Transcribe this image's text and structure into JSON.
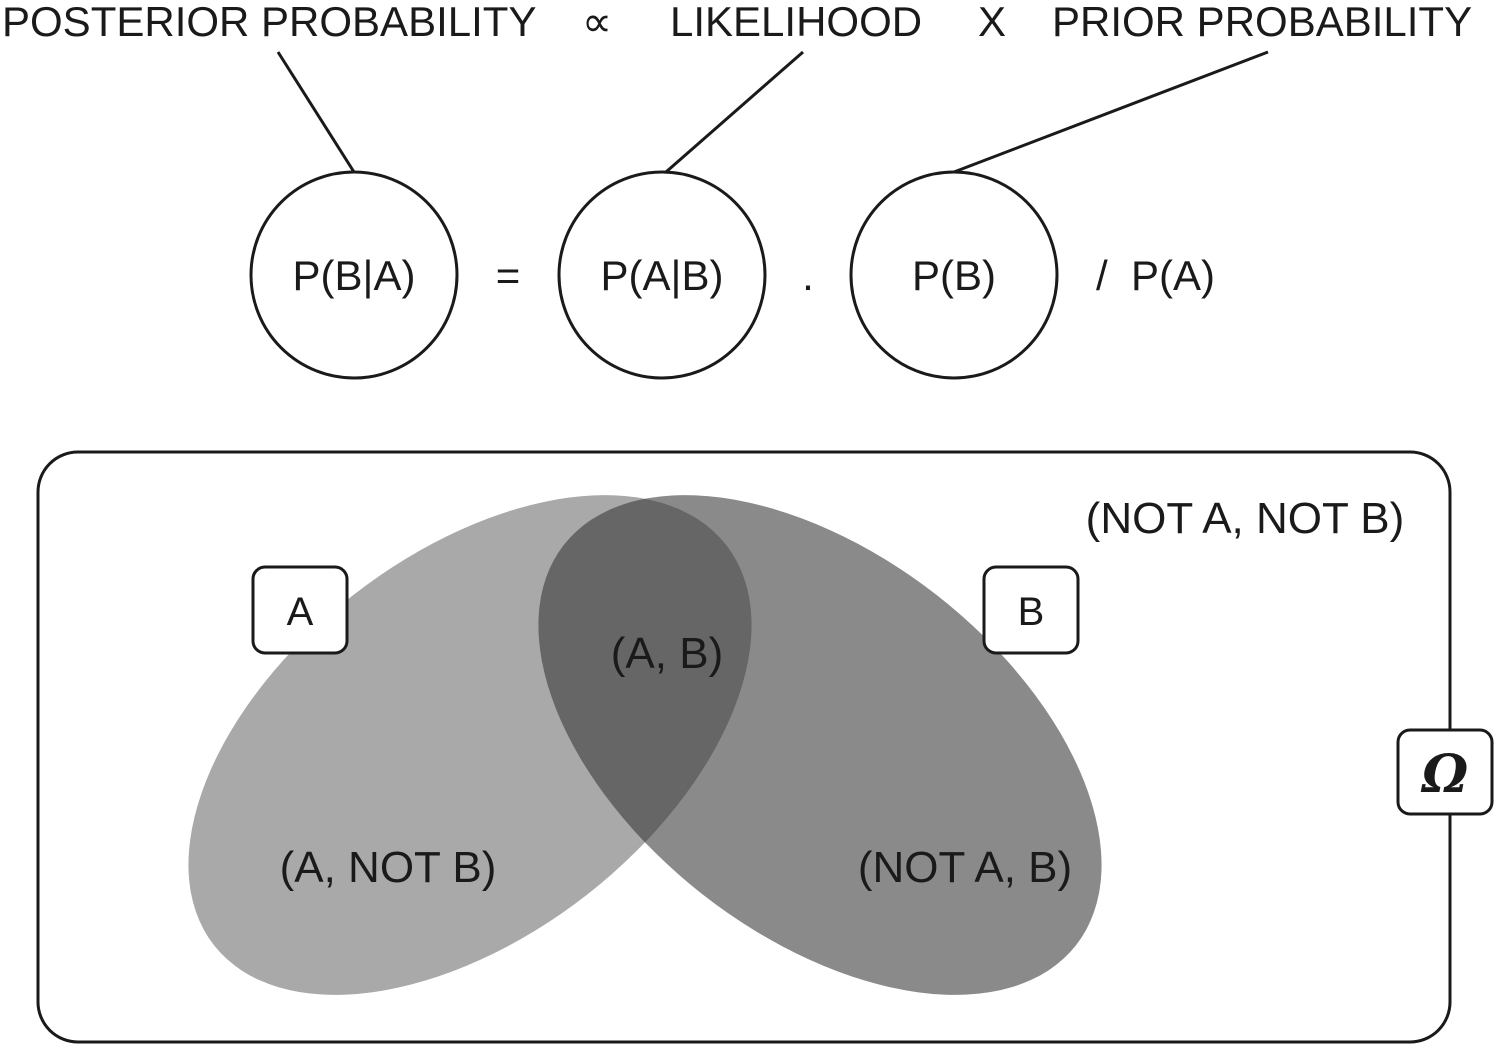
{
  "header": {
    "posterior": "POSTERIOR PROBABILITY",
    "proportional": "∝",
    "likelihood": "LIKELIHOOD",
    "times": "X",
    "prior": "PRIOR PROBABILITY"
  },
  "formula": {
    "posterior_term": "P(B|A)",
    "equals": "=",
    "likelihood_term": "P(A|B)",
    "dot": ".",
    "prior_term": "P(B)",
    "divisor": "/  P(A)"
  },
  "venn": {
    "set_a_label": "A",
    "set_b_label": "B",
    "universe_label": "Ω",
    "region_a_and_b": "(A, B)",
    "region_a_not_b": "(A, NOT B)",
    "region_not_a_b": "(NOT A, B)",
    "region_neither": "(NOT A, NOT B)"
  },
  "colors": {
    "set_a_fill": "#a9a9a9",
    "set_b_fill": "#8a8a8a",
    "intersection_fill": "#666666",
    "line": "#1a1a1a"
  }
}
